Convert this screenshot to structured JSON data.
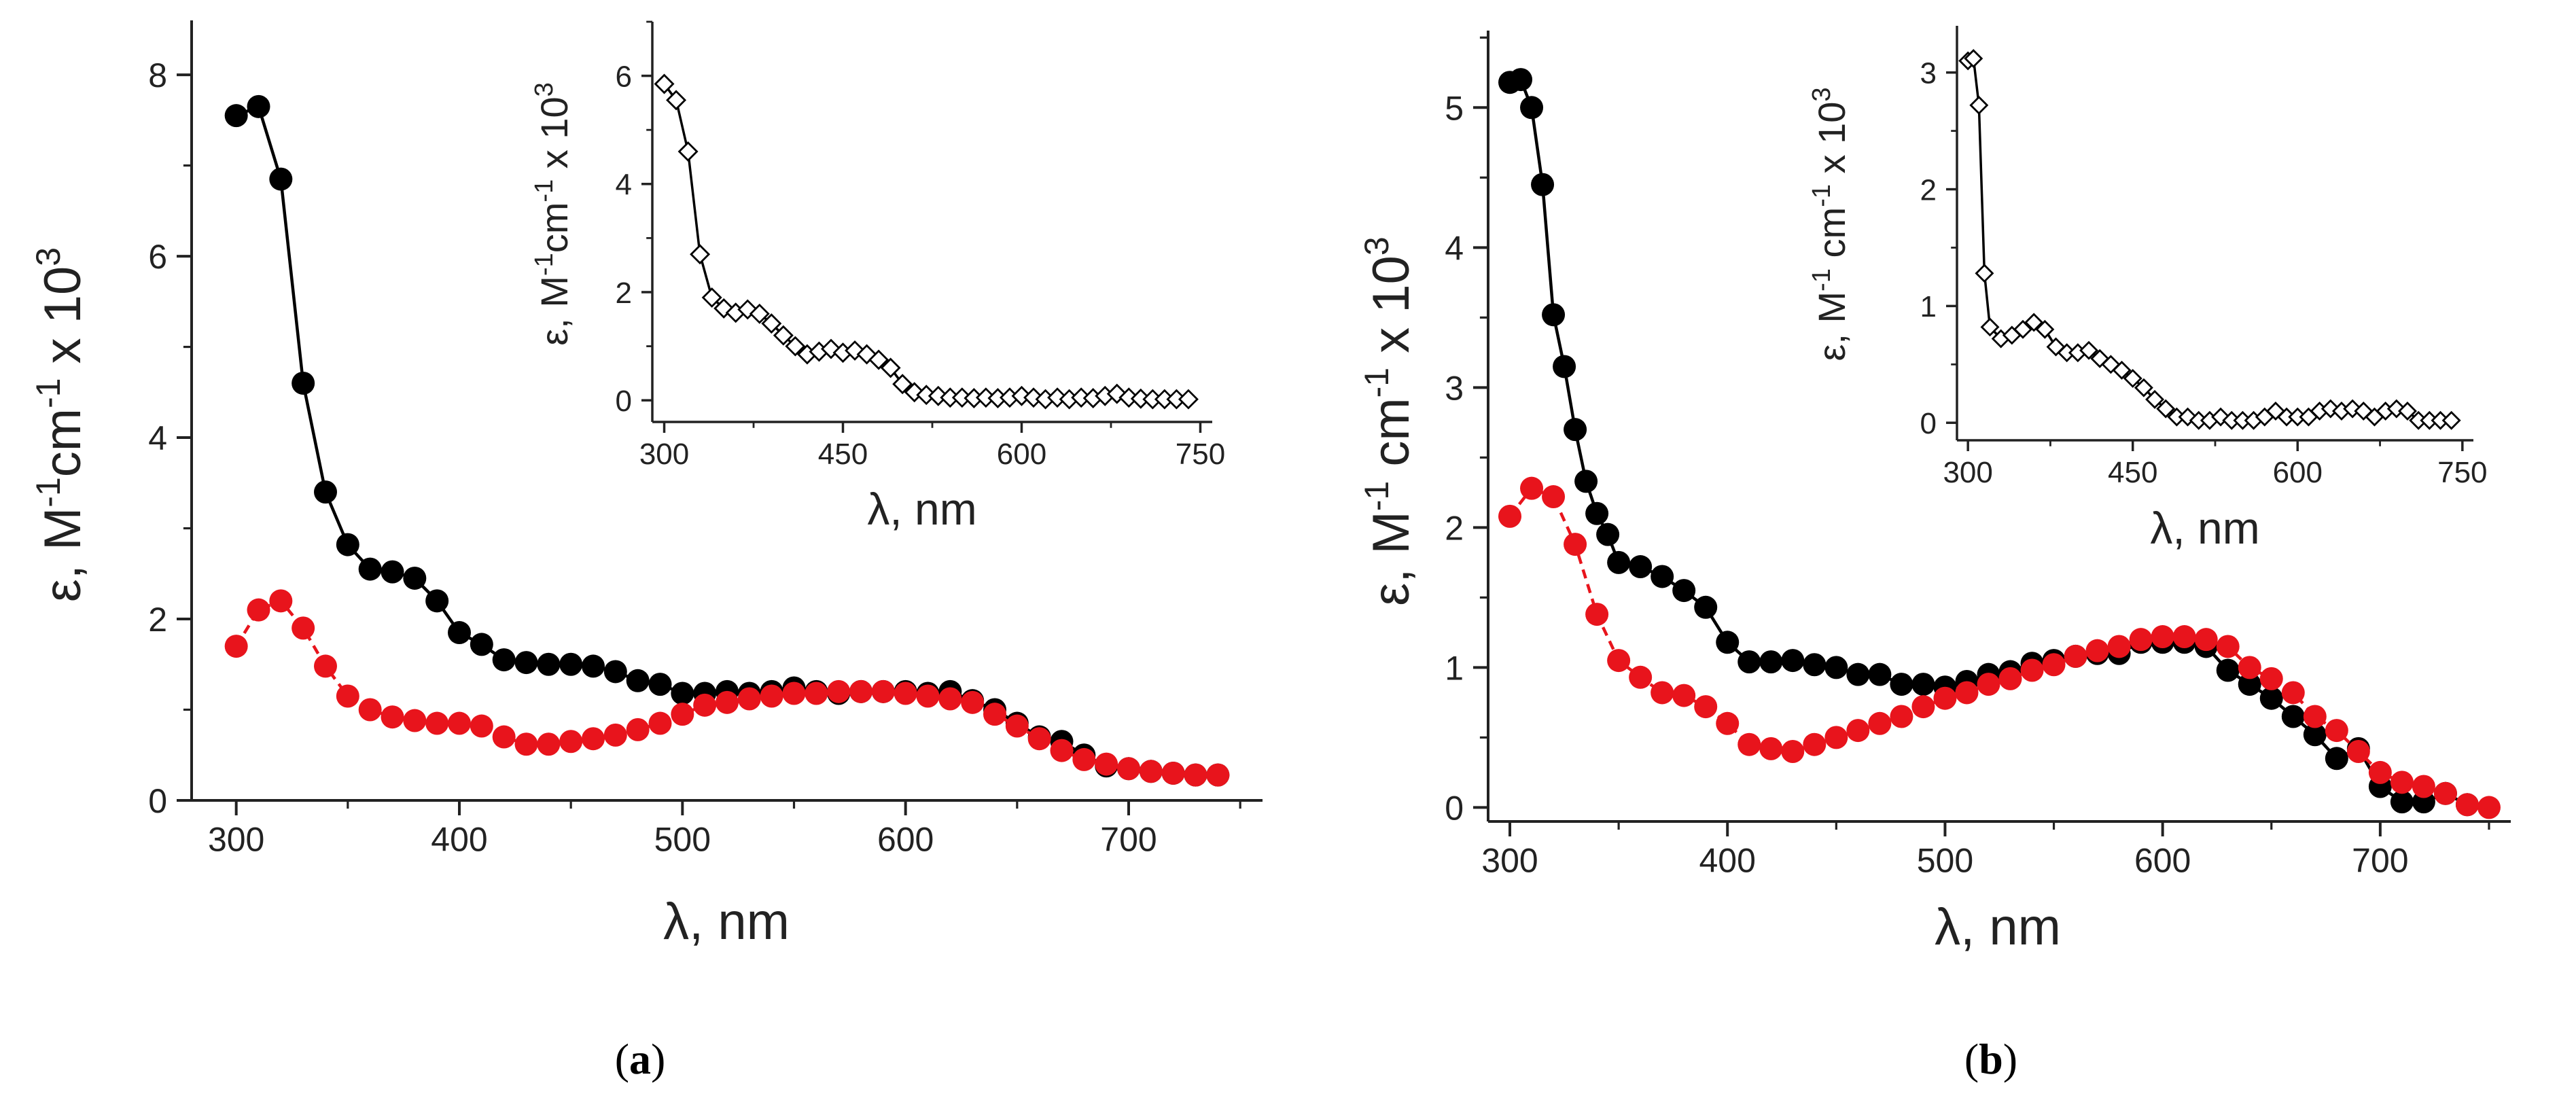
{
  "figure": {
    "panels": [
      {
        "label_open": "(",
        "label_letter": "a",
        "label_close": ")",
        "main": {
          "xlabel": "λ, nm",
          "ylabel_pre": "ε, M",
          "ylabel_mid": "cm",
          "ylabel_post": " x 10",
          "ylabel_exp1": "-1",
          "ylabel_exp2": "-1",
          "ylabel_exp3": "3"
        },
        "inset": {
          "xlabel": "λ, nm",
          "ylabel_pre": "ε, M",
          "ylabel_mid": "cm",
          "ylabel_post": " x 10",
          "ylabel_exp1": "-1",
          "ylabel_exp2": "-1",
          "ylabel_exp3": "3"
        }
      },
      {
        "label_open": "(",
        "label_letter": "b",
        "label_close": ")",
        "main": {
          "xlabel": "λ, nm",
          "ylabel_pre": "ε, M",
          "ylabel_mid": " cm",
          "ylabel_post": " x 10",
          "ylabel_exp1": "-1",
          "ylabel_exp2": "-1",
          "ylabel_exp3": "3"
        },
        "inset": {
          "xlabel": "λ, nm",
          "ylabel_pre": "ε, M",
          "ylabel_mid": " cm",
          "ylabel_post": " x 10",
          "ylabel_exp1": "-1",
          "ylabel_exp2": "-1",
          "ylabel_exp3": "3"
        }
      }
    ]
  },
  "colors": {
    "black_series": "#000000",
    "red_series": "#e8141c",
    "axis": "#222222"
  },
  "chart_data": [
    {
      "id": "a-main",
      "type": "scatter",
      "title": "",
      "xlabel": "λ, nm",
      "ylabel": "ε, M-1cm-1 x 103",
      "xlim": [
        280,
        760
      ],
      "ylim": [
        0,
        8.6
      ],
      "xticks": [
        300,
        400,
        500,
        600,
        700
      ],
      "yticks": [
        0,
        2,
        4,
        6,
        8
      ],
      "series": [
        {
          "name": "black",
          "color": "#000000",
          "dashed": false,
          "x": [
            300,
            310,
            320,
            330,
            340,
            350,
            360,
            370,
            380,
            390,
            400,
            410,
            420,
            430,
            440,
            450,
            460,
            470,
            480,
            490,
            500,
            510,
            520,
            530,
            540,
            550,
            560,
            570,
            580,
            590,
            600,
            610,
            620,
            630,
            640,
            650,
            660,
            670,
            680,
            690,
            700,
            710,
            720,
            730,
            740
          ],
          "y": [
            7.55,
            7.65,
            6.85,
            4.6,
            3.4,
            2.82,
            2.55,
            2.52,
            2.45,
            2.2,
            1.85,
            1.72,
            1.55,
            1.52,
            1.5,
            1.5,
            1.48,
            1.42,
            1.32,
            1.28,
            1.18,
            1.18,
            1.2,
            1.18,
            1.2,
            1.24,
            1.2,
            1.18,
            1.2,
            1.2,
            1.2,
            1.18,
            1.2,
            1.1,
            1.0,
            0.85,
            0.7,
            0.65,
            0.5,
            0.38,
            0.35,
            0.32,
            0.3,
            0.28,
            0.28
          ]
        },
        {
          "name": "red",
          "color": "#e8141c",
          "dashed": true,
          "x": [
            300,
            310,
            320,
            330,
            340,
            350,
            360,
            370,
            380,
            390,
            400,
            410,
            420,
            430,
            440,
            450,
            460,
            470,
            480,
            490,
            500,
            510,
            520,
            530,
            540,
            550,
            560,
            570,
            580,
            590,
            600,
            610,
            620,
            630,
            640,
            650,
            660,
            670,
            680,
            690,
            700,
            710,
            720,
            730,
            740
          ],
          "y": [
            1.7,
            2.1,
            2.2,
            1.9,
            1.48,
            1.15,
            1.0,
            0.92,
            0.88,
            0.85,
            0.85,
            0.82,
            0.7,
            0.62,
            0.62,
            0.65,
            0.68,
            0.72,
            0.78,
            0.85,
            0.95,
            1.05,
            1.08,
            1.12,
            1.15,
            1.18,
            1.18,
            1.2,
            1.2,
            1.2,
            1.18,
            1.15,
            1.12,
            1.08,
            0.95,
            0.82,
            0.68,
            0.55,
            0.45,
            0.4,
            0.35,
            0.32,
            0.3,
            0.28,
            0.28
          ]
        }
      ]
    },
    {
      "id": "a-inset",
      "type": "line",
      "xlabel": "λ, nm",
      "ylabel": "ε, M-1cm-1 x 103",
      "xlim": [
        290,
        760
      ],
      "ylim": [
        -0.4,
        7.0
      ],
      "xticks": [
        300,
        450,
        600,
        750
      ],
      "yticks": [
        0,
        2,
        4,
        6
      ],
      "series": [
        {
          "name": "open-diamond",
          "color": "#000000",
          "marker": "diamond-open",
          "x": [
            300,
            310,
            320,
            330,
            340,
            350,
            360,
            370,
            380,
            390,
            400,
            410,
            420,
            430,
            440,
            450,
            460,
            470,
            480,
            490,
            500,
            510,
            520,
            530,
            540,
            550,
            560,
            570,
            580,
            590,
            600,
            610,
            620,
            630,
            640,
            650,
            660,
            670,
            680,
            690,
            700,
            710,
            720,
            730,
            740
          ],
          "y": [
            5.85,
            5.55,
            4.6,
            2.7,
            1.9,
            1.7,
            1.62,
            1.68,
            1.6,
            1.42,
            1.2,
            1.0,
            0.85,
            0.9,
            0.95,
            0.88,
            0.92,
            0.85,
            0.75,
            0.6,
            0.3,
            0.15,
            0.1,
            0.08,
            0.05,
            0.05,
            0.04,
            0.05,
            0.04,
            0.05,
            0.08,
            0.05,
            0.02,
            0.05,
            0.02,
            0.05,
            0.04,
            0.08,
            0.12,
            0.05,
            0.03,
            0.02,
            0.02,
            0.02,
            0.02
          ]
        }
      ]
    },
    {
      "id": "b-main",
      "type": "scatter",
      "title": "",
      "xlabel": "λ, nm",
      "ylabel": "ε, M-1 cm-1 x 103",
      "xlim": [
        290,
        760
      ],
      "ylim": [
        -0.1,
        5.55
      ],
      "xticks": [
        300,
        400,
        500,
        600,
        700
      ],
      "yticks": [
        0,
        1,
        2,
        3,
        4,
        5
      ],
      "series": [
        {
          "name": "black",
          "color": "#000000",
          "dashed": false,
          "x": [
            300,
            305,
            310,
            315,
            320,
            325,
            330,
            335,
            340,
            345,
            350,
            360,
            370,
            380,
            390,
            400,
            410,
            420,
            430,
            440,
            450,
            460,
            470,
            480,
            490,
            500,
            510,
            520,
            530,
            540,
            550,
            560,
            570,
            580,
            590,
            600,
            610,
            620,
            630,
            640,
            650,
            660,
            670,
            680,
            690,
            700,
            710,
            720,
            730,
            740
          ],
          "y": [
            5.18,
            5.2,
            5.0,
            4.45,
            3.52,
            3.15,
            2.7,
            2.33,
            2.1,
            1.95,
            1.75,
            1.72,
            1.65,
            1.55,
            1.43,
            1.18,
            1.04,
            1.04,
            1.05,
            1.02,
            1.0,
            0.95,
            0.95,
            0.88,
            0.88,
            0.86,
            0.9,
            0.95,
            0.97,
            1.03,
            1.05,
            1.08,
            1.1,
            1.1,
            1.18,
            1.18,
            1.18,
            1.15,
            0.98,
            0.88,
            0.78,
            0.65,
            0.52,
            0.35,
            0.42,
            0.15,
            0.04,
            0.04,
            0.1,
            0.02
          ]
        },
        {
          "name": "red",
          "color": "#e8141c",
          "dashed": true,
          "x": [
            300,
            310,
            320,
            330,
            340,
            350,
            360,
            370,
            380,
            390,
            400,
            410,
            420,
            430,
            440,
            450,
            460,
            470,
            480,
            490,
            500,
            510,
            520,
            530,
            540,
            550,
            560,
            570,
            580,
            590,
            600,
            610,
            620,
            630,
            640,
            650,
            660,
            670,
            680,
            690,
            700,
            710,
            720,
            730,
            740,
            750
          ],
          "y": [
            2.08,
            2.28,
            2.22,
            1.88,
            1.38,
            1.05,
            0.93,
            0.82,
            0.8,
            0.72,
            0.6,
            0.45,
            0.42,
            0.4,
            0.45,
            0.5,
            0.55,
            0.6,
            0.65,
            0.72,
            0.78,
            0.82,
            0.88,
            0.92,
            0.98,
            1.02,
            1.08,
            1.12,
            1.15,
            1.2,
            1.22,
            1.22,
            1.2,
            1.15,
            1.0,
            0.92,
            0.82,
            0.65,
            0.55,
            0.4,
            0.25,
            0.18,
            0.15,
            0.1,
            0.02,
            0.0
          ]
        }
      ]
    },
    {
      "id": "b-inset",
      "type": "line",
      "xlabel": "λ, nm",
      "ylabel": "ε, M-1 cm-1 x 103",
      "xlim": [
        290,
        760
      ],
      "ylim": [
        -0.15,
        3.4
      ],
      "xticks": [
        300,
        450,
        600,
        750
      ],
      "yticks": [
        0,
        1,
        2,
        3
      ],
      "series": [
        {
          "name": "open-diamond",
          "color": "#000000",
          "marker": "diamond-open",
          "x": [
            300,
            305,
            310,
            315,
            320,
            330,
            340,
            350,
            360,
            370,
            380,
            390,
            400,
            410,
            420,
            430,
            440,
            450,
            460,
            470,
            480,
            490,
            500,
            510,
            520,
            530,
            540,
            550,
            560,
            570,
            580,
            590,
            600,
            610,
            620,
            630,
            640,
            650,
            660,
            670,
            680,
            690,
            700,
            710,
            720,
            730,
            740
          ],
          "y": [
            3.1,
            3.12,
            2.72,
            1.28,
            0.82,
            0.72,
            0.75,
            0.8,
            0.86,
            0.8,
            0.65,
            0.6,
            0.6,
            0.62,
            0.55,
            0.5,
            0.45,
            0.38,
            0.3,
            0.2,
            0.12,
            0.05,
            0.05,
            0.02,
            0.02,
            0.05,
            0.02,
            0.02,
            0.02,
            0.05,
            0.1,
            0.05,
            0.05,
            0.05,
            0.1,
            0.12,
            0.1,
            0.12,
            0.1,
            0.05,
            0.1,
            0.12,
            0.1,
            0.02,
            0.02,
            0.02,
            0.02
          ]
        }
      ]
    }
  ]
}
